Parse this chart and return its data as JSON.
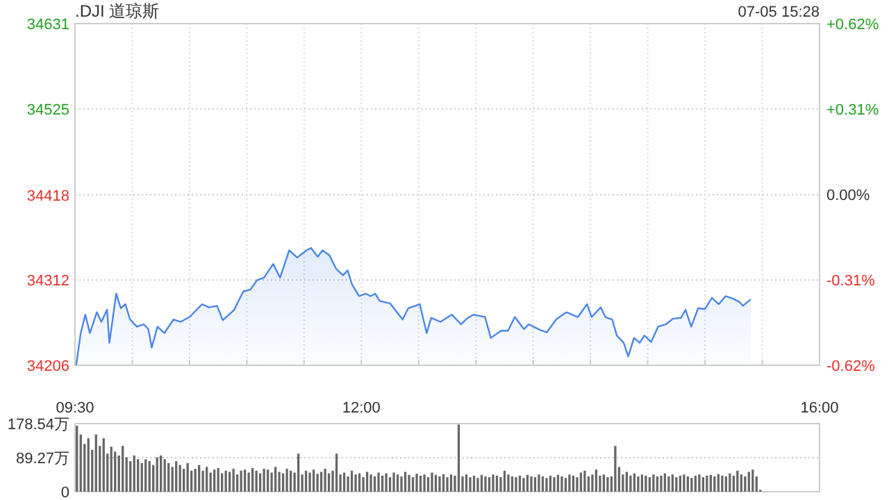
{
  "chart_data": [
    {
      "type": "area",
      "title": ".DJI 道琼斯",
      "annotations": [
        "07-05 15:28"
      ],
      "xlim": [
        9.5,
        16
      ],
      "xticks": [
        {
          "value": 9.5,
          "label": "09:30"
        },
        {
          "value": 10,
          "label": null
        },
        {
          "value": 10.5,
          "label": null
        },
        {
          "value": 11,
          "label": null
        },
        {
          "value": 11.5,
          "label": null
        },
        {
          "value": 12,
          "label": "12:00"
        },
        {
          "value": 12.5,
          "label": null
        },
        {
          "value": 13,
          "label": null
        },
        {
          "value": 13.5,
          "label": null
        },
        {
          "value": 14,
          "label": null
        },
        {
          "value": 14.5,
          "label": null
        },
        {
          "value": 15,
          "label": null
        },
        {
          "value": 15.5,
          "label": null
        },
        {
          "value": 16,
          "label": "16:00"
        }
      ],
      "ylim": [
        34206,
        34631
      ],
      "yticks": [
        34206,
        34312,
        34418,
        34525,
        34631
      ],
      "y2lim": [
        -0.62,
        0.62
      ],
      "y2ticks": [
        {
          "value": -0.62,
          "label": "-0.62%"
        },
        {
          "value": -0.31,
          "label": "-0.31%"
        },
        {
          "value": 0,
          "label": "0.00%"
        },
        {
          "value": 0.31,
          "label": "+0.31%"
        },
        {
          "value": 0.62,
          "label": "+0.62%"
        }
      ],
      "grid": true,
      "series": [
        {
          "color": "#4a86e8",
          "x": [
            9.51,
            9.55,
            9.59,
            9.63,
            9.69,
            9.73,
            9.78,
            9.8,
            9.84,
            9.86,
            9.9,
            9.94,
            9.98,
            10.04,
            10.1,
            10.14,
            10.17,
            10.22,
            10.28,
            10.36,
            10.42,
            10.5,
            10.61,
            10.67,
            10.74,
            10.79,
            10.89,
            10.92,
            10.97,
            11.03,
            11.09,
            11.15,
            11.23,
            11.29,
            11.37,
            11.44,
            11.52,
            11.56,
            11.62,
            11.66,
            11.72,
            11.78,
            11.84,
            11.88,
            11.92,
            11.98,
            12.04,
            12.08,
            12.12,
            12.16,
            12.25,
            12.31,
            12.36,
            12.41,
            12.51,
            12.57,
            12.61,
            12.69,
            12.79,
            12.87,
            12.93,
            12.98,
            13.08,
            13.13,
            13.22,
            13.28,
            13.34,
            13.42,
            13.46,
            13.56,
            13.62,
            13.7,
            13.79,
            13.89,
            13.97,
            14.01,
            14.09,
            14.13,
            14.19,
            14.23,
            14.29,
            14.33,
            14.38,
            14.43,
            14.47,
            14.53,
            14.59,
            14.66,
            14.72,
            14.79,
            14.83,
            14.88,
            14.94,
            15.0,
            15.06,
            15.12,
            15.18,
            15.24,
            15.3,
            15.33,
            15.4
          ],
          "values": [
            34206,
            34246,
            34269,
            34246,
            34272,
            34260,
            34275,
            34234,
            34275,
            34295,
            34277,
            34282,
            34263,
            34254,
            34257,
            34251,
            34228,
            34254,
            34246,
            34263,
            34260,
            34266,
            34282,
            34278,
            34280,
            34262,
            34275,
            34284,
            34298,
            34300,
            34312,
            34315,
            34332,
            34315,
            34349,
            34340,
            34349,
            34352,
            34341,
            34349,
            34343,
            34326,
            34318,
            34324,
            34306,
            34292,
            34295,
            34292,
            34295,
            34286,
            34283,
            34272,
            34263,
            34277,
            34282,
            34246,
            34265,
            34260,
            34269,
            34257,
            34265,
            34269,
            34266,
            34240,
            34249,
            34249,
            34266,
            34251,
            34257,
            34250,
            34247,
            34263,
            34272,
            34266,
            34282,
            34266,
            34278,
            34266,
            34263,
            34243,
            34234,
            34217,
            34240,
            34234,
            34243,
            34235,
            34254,
            34257,
            34264,
            34265,
            34275,
            34254,
            34277,
            34276,
            34290,
            34282,
            34292,
            34289,
            34285,
            34280,
            34288
          ]
        }
      ]
    },
    {
      "type": "bar",
      "tick_labels": "y",
      "grid": "y",
      "ylim": [
        0,
        178.54
      ],
      "yticks": [
        0,
        {
          "value": 89.27,
          "label": "89.27万"
        },
        {
          "value": 178.54,
          "label": "178.54万"
        }
      ],
      "categories": [
        null,
        null,
        null,
        null,
        null,
        null,
        null,
        null,
        null,
        null,
        null,
        null,
        null,
        null,
        null,
        null,
        null,
        null,
        null,
        null,
        null,
        null,
        null,
        null,
        null,
        null,
        null,
        null,
        null,
        null,
        null,
        null,
        null,
        null,
        null,
        null,
        null,
        null,
        null,
        null,
        null,
        null,
        null,
        null,
        null,
        null,
        null,
        null,
        null,
        null,
        null,
        null,
        null,
        null,
        null,
        null,
        null,
        null,
        null,
        null,
        null,
        null,
        null,
        null,
        null,
        null,
        null,
        null,
        null,
        null,
        null,
        null,
        null,
        null,
        null,
        null,
        null,
        null,
        null,
        null,
        null,
        null,
        null,
        null,
        null,
        null,
        null,
        null,
        null,
        null,
        null,
        null,
        null,
        null,
        null,
        null,
        null,
        null,
        null,
        null,
        null,
        null,
        null,
        null,
        null,
        null,
        null,
        null,
        null,
        null,
        null,
        null,
        null,
        null,
        null,
        null,
        null,
        null,
        null,
        null,
        null,
        null,
        null,
        null,
        null,
        null,
        null,
        null,
        null,
        null,
        null,
        null,
        null,
        null,
        null,
        null,
        null,
        null,
        null,
        null,
        null,
        null,
        null,
        null,
        null,
        null,
        null,
        null,
        null,
        null,
        null,
        null,
        null,
        null,
        null,
        null,
        null,
        null,
        null,
        null,
        null,
        null,
        null,
        null,
        null,
        null,
        null,
        null,
        null,
        null,
        null,
        null,
        null,
        null,
        null,
        null,
        null,
        null,
        null,
        null,
        null,
        null,
        null,
        null,
        null,
        null,
        null,
        null,
        null,
        null,
        null,
        null,
        null,
        null,
        null
      ],
      "series": [
        {
          "color": "#666666",
          "values": [
            173,
            150,
            125,
            140,
            110,
            150,
            120,
            140,
            100,
            118,
            105,
            95,
            120,
            90,
            80,
            95,
            85,
            75,
            85,
            80,
            70,
            90,
            95,
            85,
            75,
            65,
            80,
            70,
            60,
            75,
            55,
            60,
            70,
            55,
            65,
            50,
            58,
            62,
            48,
            55,
            52,
            60,
            45,
            55,
            58,
            50,
            62,
            55,
            48,
            60,
            58,
            50,
            65,
            52,
            48,
            60,
            55,
            50,
            100,
            45,
            55,
            50,
            58,
            47,
            52,
            60,
            48,
            55,
            100,
            45,
            50,
            40,
            55,
            45,
            48,
            38,
            52,
            45,
            40,
            50,
            42,
            48,
            38,
            50,
            45,
            40,
            52,
            44,
            38,
            47,
            42,
            45,
            38,
            50,
            44,
            40,
            46,
            38,
            45,
            42,
            176,
            40,
            45,
            38,
            42,
            36,
            44,
            40,
            38,
            45,
            42,
            38,
            55,
            45,
            40,
            38,
            42,
            36,
            44,
            40,
            38,
            45,
            40,
            36,
            42,
            38,
            44,
            40,
            36,
            45,
            42,
            38,
            50,
            55,
            40,
            45,
            58,
            42,
            45,
            38,
            40,
            120,
            65,
            45,
            52,
            42,
            48,
            40,
            45,
            42,
            38,
            45,
            40,
            42,
            48,
            40,
            45,
            38,
            42,
            45,
            40,
            36,
            42,
            45,
            38,
            42,
            44,
            40,
            46,
            42,
            40,
            48,
            42,
            55,
            45,
            40,
            52,
            58,
            40,
            5,
            null,
            null,
            null,
            null,
            null,
            null,
            null,
            null,
            null,
            null,
            null,
            null,
            null,
            null,
            null
          ]
        }
      ]
    }
  ]
}
